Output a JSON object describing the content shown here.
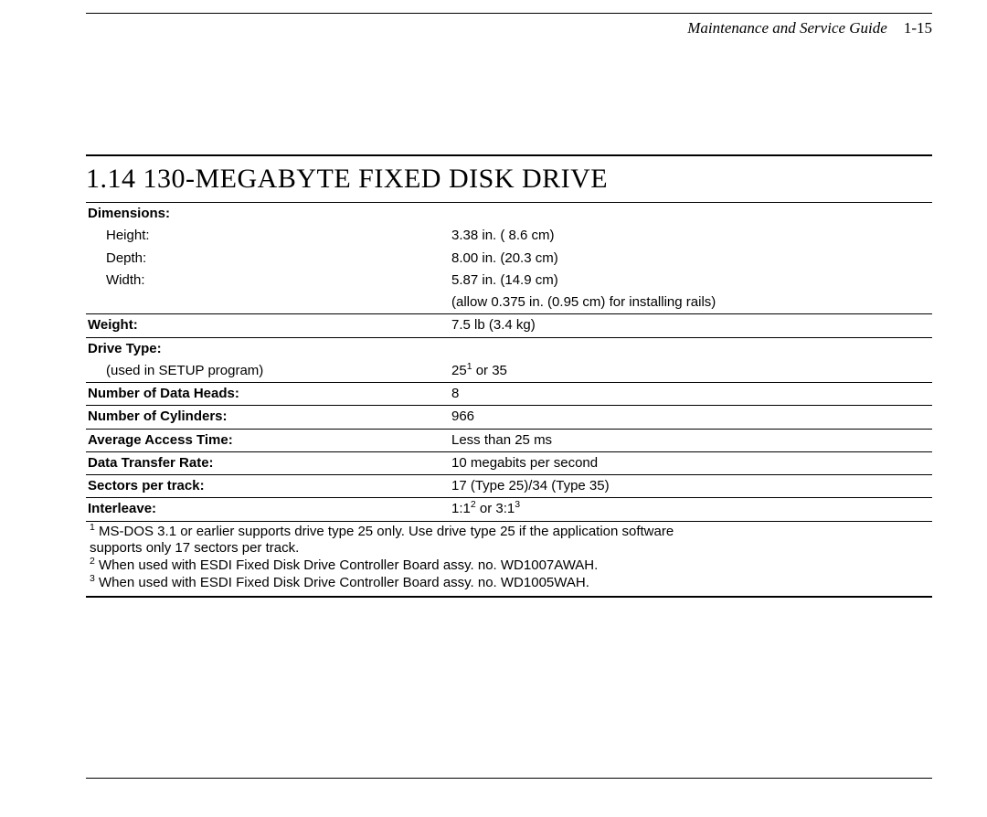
{
  "header": {
    "title": "Maintenance and Service Guide",
    "page_number": "1-15"
  },
  "section": {
    "heading": "1.14 130-MEGABYTE FIXED DISK DRIVE"
  },
  "specs": {
    "dimensions_label": "Dimensions:",
    "height_label": "Height:",
    "height_value": "3.38 in. ( 8.6 cm)",
    "depth_label": "Depth:",
    "depth_value": "8.00 in. (20.3 cm)",
    "width_label": "Width:",
    "width_value": "5.87 in. (14.9 cm)",
    "width_note": "(allow 0.375 in. (0.95 cm) for installing rails)",
    "weight_label": "Weight:",
    "weight_value": "7.5 lb (3.4 kg)",
    "drive_type_label": "Drive Type:",
    "drive_type_sublabel": "(used in SETUP program)",
    "drive_type_value_pre": "25",
    "drive_type_value_sup": "1",
    "drive_type_value_post": " or 35",
    "data_heads_label": "Number of Data Heads:",
    "data_heads_value": "8",
    "cylinders_label": "Number of Cylinders:",
    "cylinders_value": "966",
    "access_time_label": "Average Access Time:",
    "access_time_value": "Less than 25 ms",
    "transfer_rate_label": "Data Transfer Rate:",
    "transfer_rate_value": "10 megabits per second",
    "sectors_label": "Sectors per track:",
    "sectors_value": "17 (Type 25)/34 (Type 35)",
    "interleave_label": "Interleave:",
    "interleave_pre1": "1:1",
    "interleave_sup1": "2",
    "interleave_mid": " or 3:1",
    "interleave_sup2": "3"
  },
  "footnotes": {
    "f1_sup": "1",
    "f1_a": " MS-DOS 3.1 or earlier supports drive type 25 only. Use drive type 25 if the application software",
    "f1_b": "supports only 17 sectors per track.",
    "f2_sup": "2",
    "f2": " When used with ESDI Fixed Disk Drive Controller Board assy. no. WD1007AWAH.",
    "f3_sup": "3",
    "f3": " When used with ESDI Fixed Disk Drive Controller Board assy. no. WD1005WAH."
  },
  "colors": {
    "text": "#000000",
    "background": "#ffffff",
    "rule": "#000000"
  }
}
